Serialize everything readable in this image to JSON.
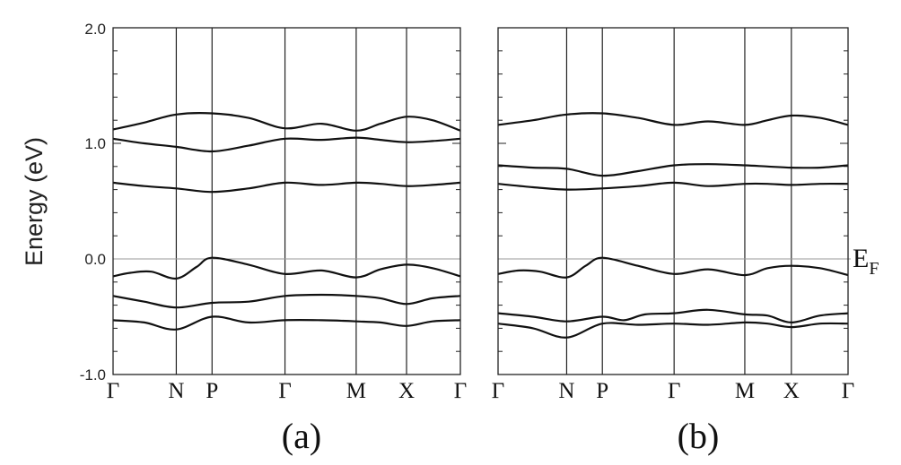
{
  "chart_data": [
    {
      "type": "line",
      "panel_label": "(a)",
      "ylabel": "Energy (eV)",
      "ylim": [
        -1.0,
        2.0
      ],
      "yticks": [
        "2.0",
        "1.0",
        "0.0",
        "-1.0"
      ],
      "ytick_values": [
        2.0,
        1.0,
        0.0,
        -1.0
      ],
      "x_labels": [
        "Γ",
        "N",
        "P",
        "Γ",
        "M",
        "X",
        "Γ"
      ],
      "x_label_positions": [
        0.0,
        0.182,
        0.285,
        0.495,
        0.7,
        0.845,
        1.0
      ],
      "fermi_level": 0.0,
      "series": [
        {
          "x": [
            0.0,
            0.09,
            0.182,
            0.285,
            0.39,
            0.495,
            0.6,
            0.7,
            0.77,
            0.845,
            0.92,
            1.0
          ],
          "values": [
            1.12,
            1.18,
            1.25,
            1.26,
            1.22,
            1.13,
            1.17,
            1.11,
            1.17,
            1.23,
            1.2,
            1.11
          ]
        },
        {
          "x": [
            0.0,
            0.09,
            0.182,
            0.285,
            0.39,
            0.495,
            0.6,
            0.7,
            0.77,
            0.845,
            0.92,
            1.0
          ],
          "values": [
            1.04,
            1.0,
            0.97,
            0.93,
            0.98,
            1.04,
            1.03,
            1.05,
            1.03,
            1.01,
            1.02,
            1.04
          ]
        },
        {
          "x": [
            0.0,
            0.09,
            0.182,
            0.285,
            0.39,
            0.495,
            0.6,
            0.7,
            0.77,
            0.845,
            0.92,
            1.0
          ],
          "values": [
            0.66,
            0.63,
            0.61,
            0.58,
            0.61,
            0.66,
            0.64,
            0.66,
            0.65,
            0.63,
            0.64,
            0.66
          ]
        },
        {
          "x": [
            0.0,
            0.05,
            0.11,
            0.182,
            0.24,
            0.285,
            0.39,
            0.495,
            0.6,
            0.7,
            0.77,
            0.845,
            0.92,
            1.0
          ],
          "values": [
            -0.15,
            -0.12,
            -0.11,
            -0.17,
            -0.07,
            0.01,
            -0.05,
            -0.13,
            -0.1,
            -0.16,
            -0.09,
            -0.05,
            -0.08,
            -0.15
          ]
        },
        {
          "x": [
            0.0,
            0.09,
            0.182,
            0.285,
            0.39,
            0.495,
            0.6,
            0.7,
            0.77,
            0.845,
            0.92,
            1.0
          ],
          "values": [
            -0.32,
            -0.37,
            -0.42,
            -0.38,
            -0.37,
            -0.32,
            -0.31,
            -0.32,
            -0.34,
            -0.39,
            -0.34,
            -0.32
          ]
        },
        {
          "x": [
            0.0,
            0.09,
            0.182,
            0.285,
            0.39,
            0.495,
            0.6,
            0.7,
            0.77,
            0.845,
            0.92,
            1.0
          ],
          "values": [
            -0.53,
            -0.55,
            -0.61,
            -0.5,
            -0.55,
            -0.53,
            -0.53,
            -0.54,
            -0.55,
            -0.58,
            -0.54,
            -0.53
          ]
        }
      ]
    },
    {
      "type": "line",
      "panel_label": "(b)",
      "ylim": [
        -1.0,
        2.0
      ],
      "x_labels": [
        "Γ",
        "N",
        "P",
        "Γ",
        "M",
        "X",
        "Γ"
      ],
      "x_label_positions": [
        0.0,
        0.196,
        0.298,
        0.503,
        0.705,
        0.838,
        1.0
      ],
      "fermi_level": 0.0,
      "fermi_label": "E",
      "fermi_label_sub": "F",
      "series": [
        {
          "x": [
            0.0,
            0.1,
            0.196,
            0.298,
            0.4,
            0.503,
            0.6,
            0.705,
            0.77,
            0.838,
            0.92,
            1.0
          ],
          "values": [
            1.16,
            1.2,
            1.25,
            1.26,
            1.22,
            1.16,
            1.19,
            1.16,
            1.2,
            1.24,
            1.22,
            1.16
          ]
        },
        {
          "x": [
            0.0,
            0.1,
            0.196,
            0.298,
            0.4,
            0.503,
            0.6,
            0.705,
            0.77,
            0.838,
            0.92,
            1.0
          ],
          "values": [
            0.81,
            0.79,
            0.78,
            0.72,
            0.76,
            0.81,
            0.82,
            0.81,
            0.8,
            0.79,
            0.79,
            0.81
          ]
        },
        {
          "x": [
            0.0,
            0.1,
            0.196,
            0.298,
            0.4,
            0.503,
            0.6,
            0.705,
            0.77,
            0.838,
            0.92,
            1.0
          ],
          "values": [
            0.65,
            0.62,
            0.6,
            0.61,
            0.63,
            0.66,
            0.63,
            0.65,
            0.65,
            0.64,
            0.65,
            0.65
          ]
        },
        {
          "x": [
            0.0,
            0.06,
            0.12,
            0.196,
            0.25,
            0.298,
            0.4,
            0.503,
            0.6,
            0.705,
            0.77,
            0.838,
            0.92,
            1.0
          ],
          "values": [
            -0.13,
            -0.1,
            -0.11,
            -0.16,
            -0.06,
            0.01,
            -0.06,
            -0.13,
            -0.09,
            -0.14,
            -0.08,
            -0.06,
            -0.08,
            -0.14
          ]
        },
        {
          "x": [
            0.0,
            0.1,
            0.196,
            0.298,
            0.36,
            0.42,
            0.503,
            0.6,
            0.705,
            0.77,
            0.838,
            0.92,
            1.0
          ],
          "values": [
            -0.47,
            -0.5,
            -0.54,
            -0.5,
            -0.53,
            -0.48,
            -0.47,
            -0.44,
            -0.48,
            -0.49,
            -0.55,
            -0.49,
            -0.47
          ]
        },
        {
          "x": [
            0.0,
            0.1,
            0.196,
            0.298,
            0.4,
            0.503,
            0.6,
            0.705,
            0.77,
            0.838,
            0.92,
            1.0
          ],
          "values": [
            -0.56,
            -0.6,
            -0.68,
            -0.56,
            -0.57,
            -0.56,
            -0.57,
            -0.55,
            -0.56,
            -0.59,
            -0.56,
            -0.56
          ]
        }
      ]
    }
  ]
}
